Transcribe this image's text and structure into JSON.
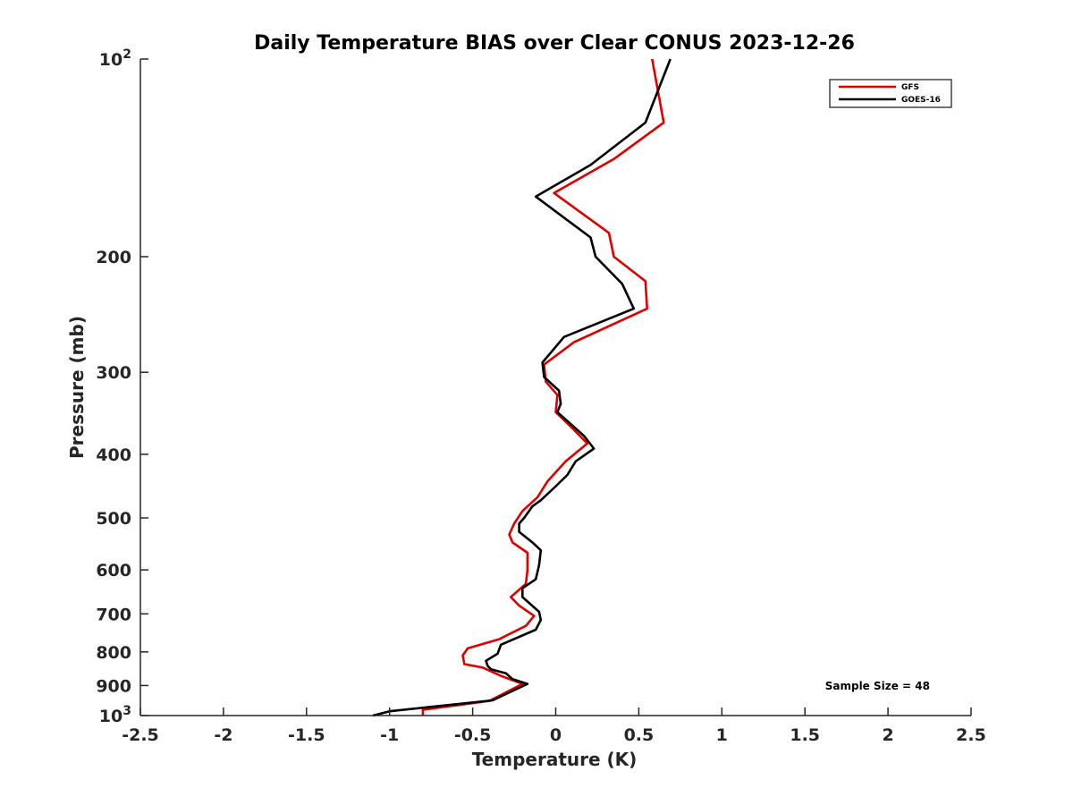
{
  "chart_data": {
    "type": "line",
    "title": "Daily Temperature BIAS over Clear CONUS 2023-12-26",
    "xlabel": "Temperature (K)",
    "ylabel": "Pressure (mb)",
    "xlim": [
      -2.5,
      2.5
    ],
    "ylim": [
      100,
      1000
    ],
    "y_scale": "log",
    "y_reversed": true,
    "x_ticks": [
      "-2.5",
      "-2",
      "-1.5",
      "-1",
      "-0.5",
      "0",
      "0.5",
      "1",
      "1.5",
      "2",
      "2.5"
    ],
    "y_ticks": [
      {
        "value": 100,
        "base": "10",
        "exp": "2"
      },
      {
        "value": 200,
        "label": "200"
      },
      {
        "value": 300,
        "label": "300"
      },
      {
        "value": 400,
        "label": "400"
      },
      {
        "value": 500,
        "label": "500"
      },
      {
        "value": 600,
        "label": "600"
      },
      {
        "value": 700,
        "label": "700"
      },
      {
        "value": 800,
        "label": "800"
      },
      {
        "value": 900,
        "label": "900"
      },
      {
        "value": 1000,
        "base": "10",
        "exp": "3"
      }
    ],
    "grid": false,
    "legend_position": "top-right",
    "series": [
      {
        "name": "GFS",
        "color": "#e00000",
        "points": [
          [
            0.58,
            100
          ],
          [
            0.65,
            125
          ],
          [
            0.35,
            142
          ],
          [
            -0.01,
            160
          ],
          [
            0.32,
            184
          ],
          [
            0.35,
            200
          ],
          [
            0.54,
            218
          ],
          [
            0.55,
            240
          ],
          [
            0.11,
            270
          ],
          [
            -0.07,
            292
          ],
          [
            -0.06,
            310
          ],
          [
            0.01,
            325
          ],
          [
            0.0,
            345
          ],
          [
            0.1,
            365
          ],
          [
            0.19,
            385
          ],
          [
            0.06,
            410
          ],
          [
            -0.05,
            440
          ],
          [
            -0.11,
            465
          ],
          [
            -0.2,
            488
          ],
          [
            -0.25,
            510
          ],
          [
            -0.28,
            530
          ],
          [
            -0.26,
            545
          ],
          [
            -0.17,
            565
          ],
          [
            -0.17,
            600
          ],
          [
            -0.18,
            630
          ],
          [
            -0.27,
            660
          ],
          [
            -0.22,
            680
          ],
          [
            -0.13,
            705
          ],
          [
            -0.18,
            730
          ],
          [
            -0.34,
            765
          ],
          [
            -0.53,
            790
          ],
          [
            -0.56,
            810
          ],
          [
            -0.55,
            835
          ],
          [
            -0.44,
            845
          ],
          [
            -0.33,
            870
          ],
          [
            -0.2,
            895
          ],
          [
            -0.4,
            950
          ],
          [
            -0.8,
            980
          ],
          [
            -0.8,
            1000
          ]
        ]
      },
      {
        "name": "GOES-16",
        "color": "#000000",
        "points": [
          [
            0.69,
            100
          ],
          [
            0.54,
            125
          ],
          [
            0.21,
            145
          ],
          [
            -0.12,
            162
          ],
          [
            0.21,
            187
          ],
          [
            0.24,
            200
          ],
          [
            0.4,
            220
          ],
          [
            0.47,
            240
          ],
          [
            0.05,
            265
          ],
          [
            -0.08,
            290
          ],
          [
            -0.07,
            305
          ],
          [
            0.02,
            320
          ],
          [
            0.03,
            335
          ],
          [
            0.01,
            345
          ],
          [
            0.17,
            375
          ],
          [
            0.23,
            392
          ],
          [
            0.12,
            410
          ],
          [
            0.07,
            430
          ],
          [
            -0.01,
            450
          ],
          [
            -0.09,
            470
          ],
          [
            -0.14,
            480
          ],
          [
            -0.19,
            500
          ],
          [
            -0.22,
            510
          ],
          [
            -0.22,
            525
          ],
          [
            -0.14,
            545
          ],
          [
            -0.09,
            560
          ],
          [
            -0.1,
            590
          ],
          [
            -0.12,
            620
          ],
          [
            -0.2,
            640
          ],
          [
            -0.2,
            660
          ],
          [
            -0.1,
            695
          ],
          [
            -0.09,
            715
          ],
          [
            -0.12,
            740
          ],
          [
            -0.33,
            780
          ],
          [
            -0.35,
            805
          ],
          [
            -0.42,
            825
          ],
          [
            -0.41,
            840
          ],
          [
            -0.39,
            850
          ],
          [
            -0.3,
            862
          ],
          [
            -0.26,
            880
          ],
          [
            -0.17,
            895
          ],
          [
            -0.38,
            948
          ],
          [
            -1.0,
            985
          ],
          [
            -1.1,
            1000
          ]
        ]
      }
    ],
    "annotations": [
      {
        "text": "Sample Size = 48",
        "position": "bottom-right"
      }
    ]
  }
}
